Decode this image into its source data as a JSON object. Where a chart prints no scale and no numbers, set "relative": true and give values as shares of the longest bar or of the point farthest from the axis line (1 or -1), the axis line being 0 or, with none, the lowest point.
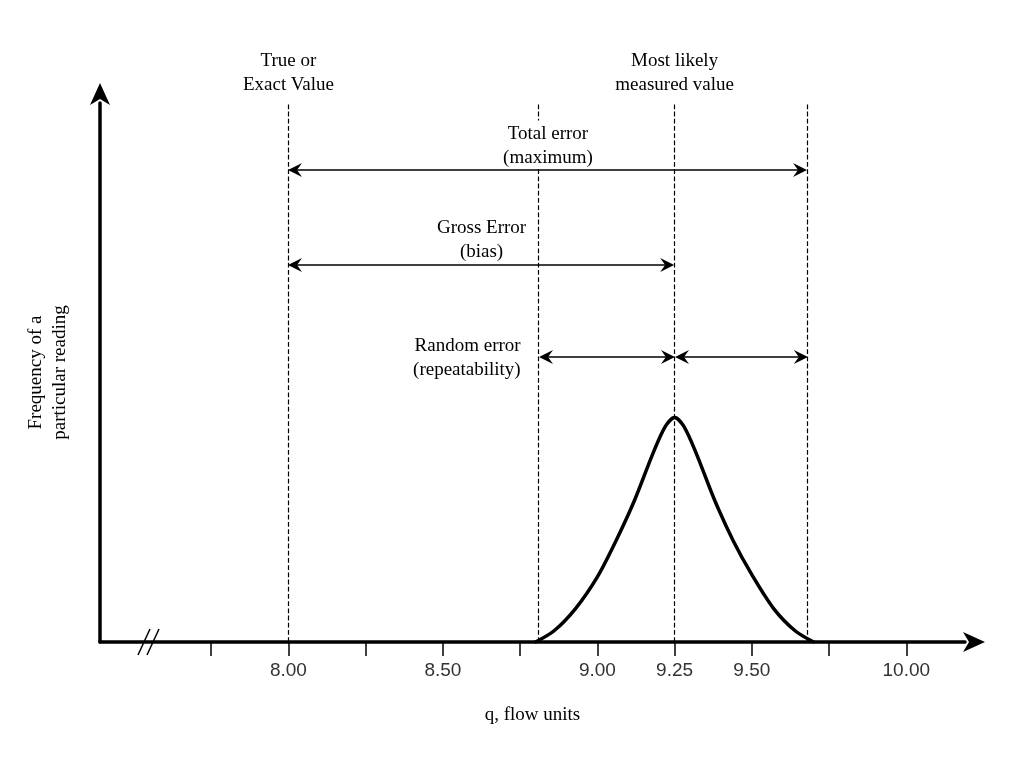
{
  "chart_data": {
    "type": "line",
    "relative": true,
    "xlabel": "q, flow units",
    "ylabel": "Frequency of a\nparticular reading",
    "x": [
      8.8,
      8.86,
      8.93,
      9.0,
      9.06,
      9.12,
      9.18,
      9.22,
      9.25,
      9.28,
      9.32,
      9.38,
      9.44,
      9.5,
      9.57,
      9.64,
      9.7
    ],
    "series": [
      {
        "color": "#000000",
        "values": [
          0,
          0.05,
          0.15,
          0.29,
          0.45,
          0.63,
          0.84,
          0.96,
          1,
          0.96,
          0.84,
          0.63,
          0.45,
          0.3,
          0.15,
          0.05,
          0
        ]
      }
    ],
    "annotations": [
      "Total error\n(maximum)",
      "Gross Error\n(bias)",
      "Random error\n(repeatability)"
    ],
    "xlim": [
      7.39,
      10.19
    ],
    "xticks": [
      {
        "value": 7.75,
        "label": null
      },
      "8.00",
      {
        "value": 8.25,
        "label": null
      },
      {
        "value": 8.5,
        "label": "8.50"
      },
      {
        "value": 8.75,
        "label": null
      },
      {
        "value": 9,
        "label": "9.00"
      },
      {
        "value": 9.25,
        "label": "9.25"
      },
      {
        "value": 9.5,
        "label": "9.50"
      },
      {
        "value": 9.75,
        "label": null
      },
      {
        "value": 10,
        "label": "10.00"
      }
    ],
    "ref_lines": [
      {
        "axis": "x",
        "value": 8.0,
        "label": "True or\nExact Value",
        "line_style": "dashed"
      },
      {
        "axis": "x",
        "value": 9.25,
        "label": "Most likely\nmeasured value",
        "line_style": "dashed"
      },
      {
        "axis": "x",
        "value": 8.81,
        "label": null,
        "line_style": "dashed"
      },
      {
        "axis": "x",
        "value": 9.68,
        "label": null,
        "line_style": "dashed"
      }
    ],
    "grid": false,
    "marker": "none",
    "line_style": "solid"
  }
}
